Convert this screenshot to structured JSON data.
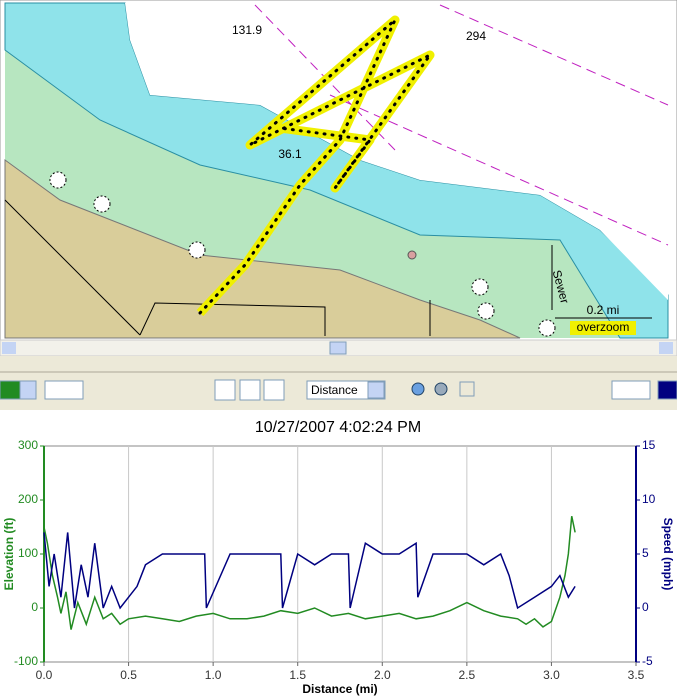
{
  "map": {
    "depth_labels": [
      "131.9",
      "294",
      "36.1"
    ],
    "street": "Sewer",
    "scale": "0.2 mi",
    "status": "overzoom"
  },
  "toolbar": {
    "axis_select": "Distance"
  },
  "chart_data": {
    "type": "line",
    "title": "10/27/2007 4:02:24 PM",
    "x_label": "Distance (mi)",
    "y_label": "Elevation (ft)",
    "y2_label": "Speed (mph)",
    "xlim": [
      0,
      3.5
    ],
    "xticks": [
      {
        "value": 0,
        "label": "0.0"
      },
      0.5,
      {
        "value": 1,
        "label": "1.0"
      },
      1.5,
      {
        "value": 2,
        "label": "2.0"
      },
      2.5,
      {
        "value": 3,
        "label": "3.0"
      },
      3.5
    ],
    "ylim": [
      -100,
      300
    ],
    "yticks": [
      -100,
      0,
      100,
      200,
      300
    ],
    "y2lim": [
      -5,
      15
    ],
    "y2ticks": [
      -5,
      0,
      5,
      10,
      15
    ],
    "grid": "x",
    "series": [
      {
        "name": "Elevation",
        "color": "#228b22",
        "axis": "y",
        "x": [
          0,
          0.02,
          0.05,
          0.08,
          0.1,
          0.13,
          0.16,
          0.2,
          0.25,
          0.3,
          0.35,
          0.4,
          0.45,
          0.5,
          0.6,
          0.7,
          0.8,
          0.9,
          1.0,
          1.1,
          1.2,
          1.3,
          1.4,
          1.5,
          1.6,
          1.7,
          1.8,
          1.9,
          2.0,
          2.1,
          2.2,
          2.3,
          2.4,
          2.5,
          2.6,
          2.7,
          2.8,
          2.85,
          2.9,
          2.95,
          3.0,
          3.05,
          3.08,
          3.1,
          3.12,
          3.14
        ],
        "values": [
          150,
          120,
          60,
          20,
          -10,
          30,
          -40,
          10,
          -30,
          20,
          -20,
          -10,
          -30,
          -20,
          -15,
          -20,
          -25,
          -15,
          -10,
          -20,
          -20,
          -15,
          -5,
          -10,
          0,
          -15,
          -10,
          -20,
          -15,
          -10,
          -20,
          -15,
          -5,
          10,
          -5,
          -15,
          -20,
          -30,
          -20,
          -35,
          -25,
          20,
          60,
          100,
          170,
          140
        ]
      },
      {
        "name": "Speed",
        "color": "#000080",
        "axis": "y2",
        "x": [
          0,
          0.03,
          0.06,
          0.1,
          0.14,
          0.18,
          0.22,
          0.26,
          0.3,
          0.35,
          0.4,
          0.45,
          0.5,
          0.55,
          0.6,
          0.7,
          0.8,
          0.9,
          0.95,
          0.96,
          1.1,
          1.2,
          1.3,
          1.4,
          1.41,
          1.5,
          1.6,
          1.7,
          1.8,
          1.81,
          1.9,
          2.0,
          2.1,
          2.2,
          2.21,
          2.3,
          2.4,
          2.5,
          2.6,
          2.7,
          2.75,
          2.8,
          2.9,
          3.0,
          3.05,
          3.1,
          3.14
        ],
        "values": [
          7,
          2,
          5,
          1,
          7,
          0,
          4,
          1,
          6,
          0,
          2,
          0,
          1,
          2,
          4,
          5,
          5,
          5,
          5,
          0,
          5,
          5,
          5,
          5,
          0,
          5,
          4,
          5,
          5,
          0,
          6,
          5,
          5,
          6,
          1,
          5,
          5,
          5,
          4,
          5,
          3,
          0,
          1,
          2,
          3,
          1,
          2
        ]
      }
    ]
  }
}
